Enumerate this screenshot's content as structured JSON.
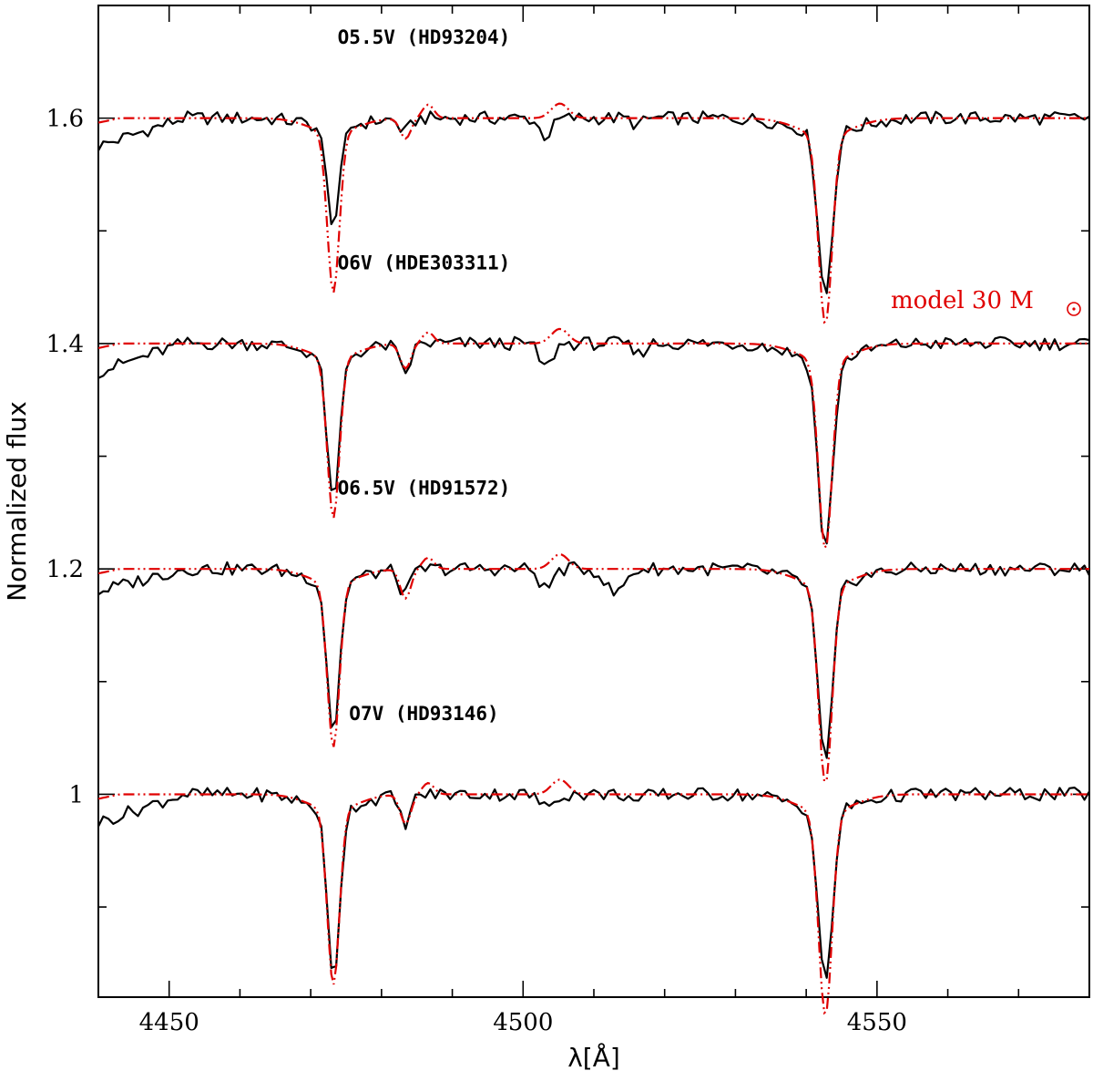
{
  "chart_data": {
    "type": "line",
    "xlabel": "λ[Å]",
    "ylabel": "Normalized flux",
    "xlim": [
      4440,
      4580
    ],
    "ylim": [
      0.82,
      1.7
    ],
    "xticks": [
      {
        "value": 4450,
        "label": "4450"
      },
      {
        "value": 4500,
        "label": "4500"
      },
      {
        "value": 4550,
        "label": "4550"
      }
    ],
    "yticks": [
      {
        "value": 1.0,
        "label": "1"
      },
      {
        "value": 1.2,
        "label": "1.2"
      },
      {
        "value": 1.4,
        "label": "1.4"
      },
      {
        "value": 1.6,
        "label": "1.6"
      }
    ],
    "model_label": "model 30 M",
    "model_color": "#e00000",
    "observed_color": "#000000",
    "spectra": [
      {
        "name": "O5.5V (HD93204)",
        "offset": 1.6,
        "label_x": 4486,
        "label_y": 1.666,
        "observed": {
          "start": 0.975,
          "lines": [
            [
              4473.2,
              0.086,
              0.9
            ],
            [
              4542.7,
              0.145,
              1.0
            ],
            [
              4483.3,
              0.012,
              0.8
            ],
            [
              4503.2,
              0.016,
              0.9
            ],
            [
              4516.2,
              0.006,
              0.8
            ]
          ]
        },
        "model": {
          "lines": [
            [
              4473.2,
              0.142,
              0.85
            ],
            [
              4542.7,
              0.168,
              0.95
            ],
            [
              4483.4,
              0.018,
              0.75
            ]
          ],
          "emission": [
            [
              4505.2,
              0.013,
              1.2
            ],
            [
              4486.6,
              0.012,
              0.8
            ]
          ]
        }
      },
      {
        "name": "O6V (HDE303311)",
        "offset": 1.4,
        "label_x": 4486,
        "label_y": 1.466,
        "observed": {
          "start": 0.975,
          "lines": [
            [
              4473.2,
              0.132,
              0.85
            ],
            [
              4542.7,
              0.168,
              1.0
            ],
            [
              4483.3,
              0.026,
              0.8
            ],
            [
              4503.2,
              0.022,
              0.9
            ],
            [
              4516.2,
              0.01,
              0.8
            ]
          ]
        },
        "model": {
          "lines": [
            [
              4473.2,
              0.142,
              0.85
            ],
            [
              4542.7,
              0.168,
              0.95
            ],
            [
              4483.4,
              0.022,
              0.75
            ]
          ],
          "emission": [
            [
              4505.2,
              0.013,
              1.2
            ],
            [
              4486.6,
              0.01,
              0.8
            ]
          ]
        }
      },
      {
        "name": "O6.5V (HD91572)",
        "offset": 1.2,
        "label_x": 4486,
        "label_y": 1.266,
        "observed": {
          "start": 0.98,
          "lines": [
            [
              4473.2,
              0.135,
              0.85
            ],
            [
              4542.7,
              0.16,
              1.0
            ],
            [
              4483.3,
              0.022,
              0.8
            ],
            [
              4503.2,
              0.018,
              0.9
            ],
            [
              4513.0,
              0.022,
              1.3
            ]
          ]
        },
        "model": {
          "lines": [
            [
              4473.2,
              0.145,
              0.85
            ],
            [
              4542.7,
              0.175,
              0.95
            ],
            [
              4483.4,
              0.026,
              0.75
            ]
          ],
          "emission": [
            [
              4505.2,
              0.013,
              1.2
            ],
            [
              4486.6,
              0.01,
              0.8
            ]
          ]
        }
      },
      {
        "name": "O7V (HD93146)",
        "offset": 1.0,
        "label_x": 4486,
        "label_y": 1.066,
        "observed": {
          "start": 0.975,
          "lines": [
            [
              4473.2,
              0.152,
              0.85
            ],
            [
              4542.7,
              0.155,
              1.0
            ],
            [
              4483.3,
              0.025,
              0.8
            ],
            [
              4503.2,
              0.012,
              0.9
            ],
            [
              4516.2,
              0.008,
              0.8
            ]
          ]
        },
        "model": {
          "lines": [
            [
              4473.2,
              0.155,
              0.85
            ],
            [
              4542.7,
              0.18,
              0.95
            ],
            [
              4483.4,
              0.026,
              0.75
            ]
          ],
          "emission": [
            [
              4505.2,
              0.013,
              1.2
            ],
            [
              4486.6,
              0.01,
              0.8
            ]
          ]
        }
      }
    ]
  }
}
